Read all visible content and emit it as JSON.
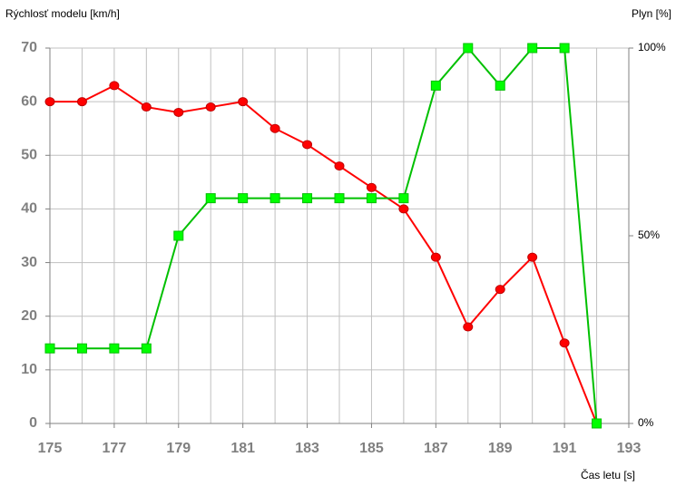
{
  "chart_data": {
    "type": "line",
    "y_label": "Rýchlosť modelu [km/h]",
    "y2_label": "Plyn [%]",
    "x_label": "Čas letu [s]",
    "x": [
      175,
      176,
      177,
      178,
      179,
      180,
      181,
      182,
      183,
      184,
      185,
      186,
      187,
      188,
      189,
      190,
      191,
      192
    ],
    "xlim": [
      175,
      193
    ],
    "xticks": [
      175,
      177,
      179,
      181,
      183,
      185,
      187,
      189,
      191,
      193
    ],
    "xminorticks": [
      176,
      178,
      180,
      182,
      184,
      186,
      188,
      190,
      192
    ],
    "ylim": [
      0,
      70
    ],
    "yticks": [
      0,
      10,
      20,
      30,
      40,
      50,
      60,
      70
    ],
    "y2lim": [
      0,
      100
    ],
    "y2ticks": [
      {
        "value": 0,
        "label": "0%"
      },
      {
        "value": 50,
        "label": "50%"
      },
      {
        "value": 100,
        "label": "100%"
      }
    ],
    "grid": true,
    "series": [
      {
        "color": "#ff0000",
        "marker": "circle",
        "values": [
          60,
          60,
          63,
          59,
          58,
          59,
          60,
          55,
          52,
          48,
          44,
          40,
          31,
          18,
          25,
          31,
          15,
          0
        ]
      },
      {
        "color": "#00c000",
        "marker": "square",
        "axis": "y2",
        "values": [
          20,
          20,
          20,
          20,
          50,
          60,
          60,
          60,
          60,
          60,
          60,
          60,
          90,
          100,
          90,
          100,
          100,
          0
        ]
      }
    ]
  }
}
